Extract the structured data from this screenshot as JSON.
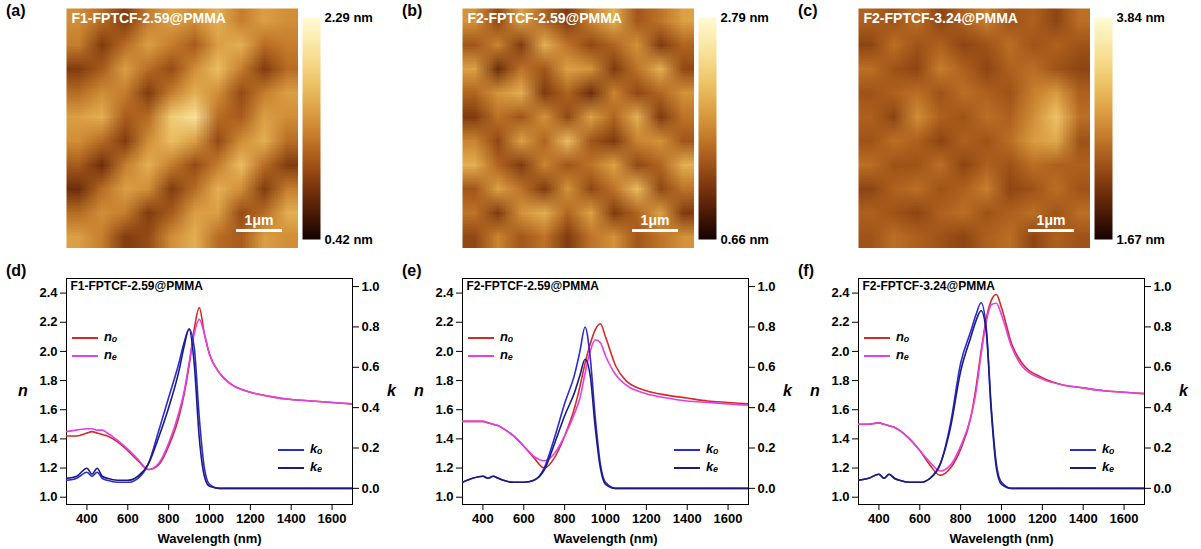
{
  "chart_data": [
    {
      "type": "heatmap",
      "panel": "(a)",
      "title": "F1-FPTCF-2.59@PMMA",
      "scale_bar": "1μm",
      "tick_labels": false,
      "colorbar": {
        "range": [
          0.42,
          2.29
        ],
        "ticks": [
          {
            "value": 2.29,
            "label": "2.29 nm"
          },
          {
            "value": 0.42,
            "label": "0.42 nm"
          }
        ]
      },
      "cells": [
        [
          1.4,
          1.2,
          0.9,
          1.3,
          1.5,
          1.4,
          1.6,
          1.3,
          1.5,
          1.4
        ],
        [
          1.3,
          0.9,
          1.2,
          1.5,
          1.3,
          1.1,
          1.5,
          1.6,
          1.2,
          1.3
        ],
        [
          0.9,
          1.1,
          1.5,
          1.2,
          1.0,
          1.4,
          1.7,
          1.3,
          0.9,
          1.2
        ],
        [
          1.2,
          1.4,
          1.3,
          0.9,
          1.3,
          1.6,
          1.4,
          1.0,
          1.3,
          1.5
        ],
        [
          1.5,
          1.6,
          1.1,
          1.2,
          1.8,
          2.0,
          1.2,
          1.1,
          1.5,
          1.4
        ],
        [
          1.4,
          1.2,
          0.9,
          1.4,
          1.7,
          1.5,
          1.0,
          1.4,
          1.6,
          1.2
        ],
        [
          1.1,
          0.8,
          1.3,
          1.6,
          1.3,
          1.0,
          1.3,
          1.7,
          1.2,
          0.9
        ],
        [
          0.8,
          1.2,
          1.5,
          1.4,
          0.9,
          1.2,
          1.6,
          1.4,
          0.9,
          1.3
        ],
        [
          1.2,
          1.4,
          1.3,
          0.9,
          1.1,
          1.5,
          1.5,
          1.0,
          1.2,
          1.6
        ],
        [
          1.5,
          1.3,
          0.9,
          1.0,
          1.4,
          1.6,
          1.2,
          1.1,
          1.5,
          1.4
        ]
      ]
    },
    {
      "type": "heatmap",
      "panel": "(b)",
      "title": "F2-FPTCF-2.59@PMMA",
      "scale_bar": "1μm",
      "tick_labels": false,
      "colorbar": {
        "range": [
          0.66,
          2.79
        ],
        "ticks": [
          {
            "value": 2.79,
            "label": "2.79 nm"
          },
          {
            "value": 0.66,
            "label": "0.66 nm"
          }
        ]
      },
      "cells": [
        [
          1.8,
          1.3,
          1.9,
          1.5,
          1.2,
          1.7,
          2.0,
          1.4,
          1.6,
          1.9
        ],
        [
          1.4,
          1.7,
          1.2,
          2.0,
          1.6,
          1.3,
          1.5,
          1.8,
          1.2,
          1.5
        ],
        [
          1.9,
          1.1,
          1.6,
          1.4,
          1.9,
          1.8,
          1.2,
          1.6,
          2.0,
          1.3
        ],
        [
          1.5,
          1.8,
          2.0,
          1.2,
          1.5,
          1.1,
          1.7,
          1.3,
          1.5,
          1.8
        ],
        [
          1.2,
          1.6,
          1.4,
          1.8,
          1.3,
          1.9,
          1.5,
          2.0,
          1.2,
          1.6
        ],
        [
          1.7,
          1.3,
          1.9,
          1.5,
          2.1,
          1.4,
          1.2,
          1.7,
          1.8,
          1.4
        ],
        [
          2.0,
          1.5,
          1.2,
          1.7,
          1.4,
          1.6,
          1.9,
          1.3,
          1.5,
          2.0
        ],
        [
          1.4,
          1.9,
          1.6,
          1.2,
          1.8,
          1.3,
          1.6,
          2.1,
          1.3,
          1.6
        ],
        [
          1.6,
          1.2,
          1.8,
          2.0,
          1.5,
          1.9,
          1.2,
          1.5,
          1.9,
          1.2
        ],
        [
          1.3,
          1.7,
          1.4,
          1.6,
          1.2,
          1.6,
          1.8,
          1.4,
          1.6,
          1.8
        ]
      ]
    },
    {
      "type": "heatmap",
      "panel": "(c)",
      "title": "F2-FPTCF-3.24@PMMA",
      "scale_bar": "1μm",
      "tick_labels": false,
      "colorbar": {
        "range": [
          1.67,
          3.84
        ],
        "ticks": [
          {
            "value": 3.84,
            "label": "3.84 nm"
          },
          {
            "value": 1.67,
            "label": "1.67 nm"
          }
        ]
      },
      "cells": [
        [
          2.5,
          2.4,
          2.6,
          2.3,
          2.5,
          2.7,
          2.4,
          2.5,
          2.3,
          2.6
        ],
        [
          2.3,
          2.6,
          2.4,
          2.5,
          2.3,
          2.4,
          2.6,
          2.4,
          2.5,
          2.4
        ],
        [
          2.6,
          2.4,
          2.3,
          2.7,
          2.5,
          2.3,
          2.5,
          2.6,
          2.4,
          2.3
        ],
        [
          2.4,
          2.5,
          2.6,
          2.4,
          2.6,
          2.5,
          2.4,
          2.7,
          2.9,
          2.5
        ],
        [
          2.5,
          2.3,
          2.8,
          2.5,
          2.4,
          2.6,
          2.5,
          2.8,
          3.2,
          2.6
        ],
        [
          2.4,
          2.6,
          2.5,
          2.3,
          2.5,
          2.4,
          2.6,
          2.9,
          3.0,
          2.4
        ],
        [
          2.6,
          2.4,
          2.4,
          2.6,
          2.3,
          2.5,
          2.4,
          2.6,
          2.5,
          2.5
        ],
        [
          2.3,
          2.5,
          2.6,
          2.4,
          2.5,
          2.7,
          2.3,
          2.4,
          2.6,
          2.4
        ],
        [
          2.5,
          2.4,
          2.3,
          2.5,
          2.6,
          2.4,
          2.5,
          2.6,
          2.4,
          2.6
        ],
        [
          2.4,
          2.6,
          2.5,
          2.4,
          2.3,
          2.5,
          2.6,
          2.3,
          2.5,
          2.4
        ]
      ]
    },
    {
      "type": "line",
      "panel": "(d)",
      "title": "F1-FPTCF-2.59@PMMA",
      "x_label": "Wavelength (nm)",
      "y_label": "n",
      "y2_label": "k",
      "legend": "inside",
      "x": [
        300,
        350,
        400,
        425,
        450,
        475,
        500,
        550,
        600,
        650,
        700,
        750,
        800,
        850,
        875,
        900,
        925,
        950,
        975,
        1000,
        1050,
        1100,
        1200,
        1300,
        1400,
        1500,
        1600,
        1700
      ],
      "xlim": [
        300,
        1700
      ],
      "xticks": [
        400,
        600,
        800,
        1000,
        1200,
        1400,
        1600
      ],
      "ylim": [
        0.95,
        2.5
      ],
      "yticks": [
        {
          "value": 1,
          "label": "1.0"
        },
        1.2,
        1.4,
        1.6,
        1.8,
        {
          "value": 2,
          "label": "2.0"
        },
        2.2,
        2.4
      ],
      "y2lim": [
        -0.08,
        1.04
      ],
      "y2ticks": [
        {
          "value": 0,
          "label": "0.0"
        },
        0.2,
        0.4,
        0.6,
        0.8,
        {
          "value": 1,
          "label": "1.0"
        }
      ],
      "series": [
        {
          "name": "nₒ",
          "color": "#d42a2a",
          "values": [
            1.42,
            1.42,
            1.44,
            1.45,
            1.44,
            1.43,
            1.42,
            1.38,
            1.32,
            1.25,
            1.19,
            1.22,
            1.35,
            1.55,
            1.7,
            1.9,
            2.15,
            2.3,
            2.12,
            1.98,
            1.85,
            1.78,
            1.72,
            1.69,
            1.67,
            1.66,
            1.65,
            1.64
          ]
        },
        {
          "name": "nₑ",
          "color": "#e040e8",
          "values": [
            1.45,
            1.46,
            1.47,
            1.47,
            1.46,
            1.46,
            1.44,
            1.39,
            1.33,
            1.26,
            1.19,
            1.23,
            1.37,
            1.58,
            1.72,
            1.92,
            2.12,
            2.22,
            2.12,
            1.98,
            1.85,
            1.78,
            1.72,
            1.69,
            1.67,
            1.66,
            1.65,
            1.64
          ]
        },
        {
          "name": "kₒ",
          "color": "#2b2bd6",
          "axis": "y2",
          "values": [
            0.04,
            0.05,
            0.08,
            0.06,
            0.08,
            0.05,
            0.04,
            0.03,
            0.03,
            0.05,
            0.12,
            0.28,
            0.45,
            0.62,
            0.72,
            0.79,
            0.7,
            0.35,
            0.1,
            0.02,
            0,
            0,
            0,
            0,
            0,
            0,
            0,
            0
          ]
        },
        {
          "name": "kₑ",
          "color": "#1c1c80",
          "axis": "y2",
          "values": [
            0.05,
            0.06,
            0.1,
            0.07,
            0.1,
            0.06,
            0.05,
            0.04,
            0.04,
            0.06,
            0.12,
            0.25,
            0.4,
            0.58,
            0.7,
            0.79,
            0.62,
            0.25,
            0.06,
            0.01,
            0,
            0,
            0,
            0,
            0,
            0,
            0,
            0
          ]
        }
      ]
    },
    {
      "type": "line",
      "panel": "(e)",
      "title": "F2-FPTCF-2.59@PMMA",
      "x_label": "Wavelength (nm)",
      "y_label": "n",
      "y2_label": "k",
      "legend": "inside",
      "x": [
        300,
        350,
        400,
        425,
        450,
        475,
        500,
        550,
        600,
        650,
        700,
        750,
        800,
        850,
        875,
        900,
        925,
        950,
        975,
        1000,
        1050,
        1100,
        1200,
        1300,
        1400,
        1500,
        1600,
        1700
      ],
      "xlim": [
        300,
        1700
      ],
      "xticks": [
        400,
        600,
        800,
        1000,
        1200,
        1400,
        1600
      ],
      "ylim": [
        0.95,
        2.5
      ],
      "yticks": [
        {
          "value": 1,
          "label": "1.0"
        },
        1.2,
        1.4,
        1.6,
        1.8,
        {
          "value": 2,
          "label": "2.0"
        },
        2.2,
        2.4
      ],
      "y2lim": [
        -0.08,
        1.04
      ],
      "y2ticks": [
        {
          "value": 0,
          "label": "0.0"
        },
        0.2,
        0.4,
        0.6,
        0.8,
        {
          "value": 1,
          "label": "1.0"
        }
      ],
      "series": [
        {
          "name": "nₒ",
          "color": "#d42a2a",
          "values": [
            1.52,
            1.52,
            1.52,
            1.51,
            1.5,
            1.49,
            1.47,
            1.42,
            1.35,
            1.27,
            1.2,
            1.27,
            1.42,
            1.62,
            1.76,
            1.92,
            2.05,
            2.15,
            2.19,
            2.1,
            1.9,
            1.8,
            1.73,
            1.7,
            1.68,
            1.66,
            1.65,
            1.64
          ]
        },
        {
          "name": "nₑ",
          "color": "#e040e8",
          "values": [
            1.52,
            1.52,
            1.52,
            1.51,
            1.5,
            1.49,
            1.47,
            1.42,
            1.35,
            1.28,
            1.25,
            1.3,
            1.42,
            1.58,
            1.68,
            1.85,
            2.0,
            2.08,
            2.06,
            1.97,
            1.84,
            1.77,
            1.71,
            1.68,
            1.66,
            1.65,
            1.64,
            1.63
          ]
        },
        {
          "name": "kₒ",
          "color": "#2b2bd6",
          "axis": "y2",
          "values": [
            0.03,
            0.05,
            0.06,
            0.05,
            0.06,
            0.05,
            0.04,
            0.03,
            0.03,
            0.04,
            0.1,
            0.25,
            0.42,
            0.57,
            0.68,
            0.8,
            0.65,
            0.35,
            0.12,
            0.03,
            0,
            0,
            0,
            0,
            0,
            0,
            0,
            0
          ]
        },
        {
          "name": "kₑ",
          "color": "#1c1c80",
          "axis": "y2",
          "values": [
            0.03,
            0.05,
            0.06,
            0.05,
            0.06,
            0.05,
            0.04,
            0.03,
            0.03,
            0.04,
            0.09,
            0.22,
            0.36,
            0.48,
            0.56,
            0.64,
            0.56,
            0.3,
            0.1,
            0.02,
            0,
            0,
            0,
            0,
            0,
            0,
            0,
            0
          ]
        }
      ]
    },
    {
      "type": "line",
      "panel": "(f)",
      "title": "F2-FPTCF-3.24@PMMA",
      "x_label": "Wavelength (nm)",
      "y_label": "n",
      "y2_label": "k",
      "legend": "inside",
      "x": [
        300,
        350,
        400,
        425,
        450,
        475,
        500,
        550,
        600,
        650,
        700,
        750,
        800,
        850,
        875,
        900,
        925,
        950,
        975,
        1000,
        1050,
        1100,
        1200,
        1300,
        1400,
        1500,
        1600,
        1700
      ],
      "xlim": [
        300,
        1700
      ],
      "xticks": [
        400,
        600,
        800,
        1000,
        1200,
        1400,
        1600
      ],
      "ylim": [
        0.95,
        2.5
      ],
      "yticks": [
        {
          "value": 1,
          "label": "1.0"
        },
        1.2,
        1.4,
        1.6,
        1.8,
        {
          "value": 2,
          "label": "2.0"
        },
        2.2,
        2.4
      ],
      "y2lim": [
        -0.08,
        1.04
      ],
      "y2ticks": [
        {
          "value": 0,
          "label": "0.0"
        },
        0.2,
        0.4,
        0.6,
        0.8,
        {
          "value": 1,
          "label": "1.0"
        }
      ],
      "series": [
        {
          "name": "nₒ",
          "color": "#d42a2a",
          "values": [
            1.5,
            1.5,
            1.51,
            1.5,
            1.49,
            1.48,
            1.46,
            1.4,
            1.32,
            1.22,
            1.15,
            1.2,
            1.33,
            1.55,
            1.75,
            2.0,
            2.22,
            2.35,
            2.39,
            2.3,
            2.05,
            1.92,
            1.82,
            1.77,
            1.75,
            1.73,
            1.72,
            1.71
          ]
        },
        {
          "name": "nₑ",
          "color": "#e040e8",
          "values": [
            1.5,
            1.5,
            1.51,
            1.5,
            1.49,
            1.48,
            1.46,
            1.4,
            1.32,
            1.24,
            1.18,
            1.22,
            1.35,
            1.55,
            1.72,
            1.98,
            2.2,
            2.32,
            2.33,
            2.25,
            2.03,
            1.9,
            1.81,
            1.77,
            1.75,
            1.73,
            1.72,
            1.71
          ]
        },
        {
          "name": "kₒ",
          "color": "#2b2bd6",
          "axis": "y2",
          "values": [
            0.04,
            0.05,
            0.07,
            0.05,
            0.07,
            0.05,
            0.04,
            0.03,
            0.03,
            0.05,
            0.12,
            0.32,
            0.62,
            0.78,
            0.86,
            0.92,
            0.8,
            0.4,
            0.12,
            0.03,
            0,
            0,
            0,
            0,
            0,
            0,
            0,
            0
          ]
        },
        {
          "name": "kₑ",
          "color": "#1c1c80",
          "axis": "y2",
          "values": [
            0.04,
            0.05,
            0.07,
            0.05,
            0.07,
            0.05,
            0.04,
            0.03,
            0.03,
            0.05,
            0.12,
            0.3,
            0.58,
            0.75,
            0.83,
            0.88,
            0.78,
            0.38,
            0.1,
            0.02,
            0,
            0,
            0,
            0,
            0,
            0,
            0,
            0
          ]
        }
      ]
    }
  ]
}
